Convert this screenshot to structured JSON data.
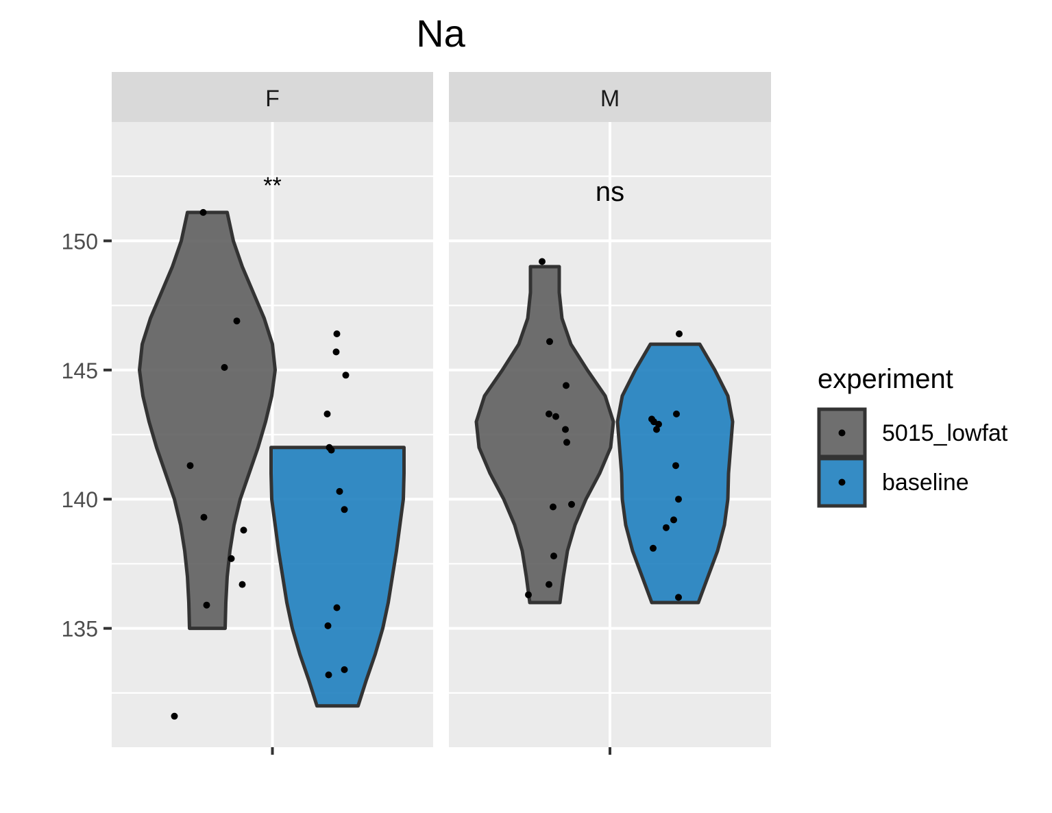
{
  "chart_data": {
    "type": "violin",
    "title": "Na",
    "xlabel": "",
    "ylabel": "",
    "ylim": [
      130.4,
      154.6
    ],
    "yticks": [
      135,
      140,
      145,
      150
    ],
    "grid": true,
    "legend": {
      "title": "experiment",
      "placement": "right",
      "entries": [
        {
          "name": "5015_lowfat",
          "color": "#5f5f5f"
        },
        {
          "name": "baseline",
          "color": "#1f7fbf"
        }
      ]
    },
    "colors": {
      "panel_bg": "#ebebeb",
      "strip_bg": "#d9d9d9",
      "grid": "#ffffff",
      "outline": "#333333",
      "point": "#000000",
      "lowfat_fill": "#5f5f5f",
      "baseline_fill": "#1f7fbf"
    },
    "facets": [
      {
        "label": "F",
        "significance": "**",
        "groups": [
          {
            "name": "5015_lowfat",
            "violin_range": [
              135,
              151.1
            ],
            "points": [
              [
                -0.06,
                151.1
              ],
              [
                0.43,
                146.9
              ],
              [
                0.25,
                145.1
              ],
              [
                -0.25,
                141.3
              ],
              [
                -0.05,
                139.3
              ],
              [
                -0.01,
                135.9
              ],
              [
                0.35,
                137.7
              ],
              [
                0.53,
                138.8
              ],
              [
                0.51,
                136.7
              ],
              [
                -0.48,
                131.6
              ]
            ],
            "density": [
              [
                135,
                0.26
              ],
              [
                136,
                0.27
              ],
              [
                137,
                0.29
              ],
              [
                138,
                0.33
              ],
              [
                139,
                0.39
              ],
              [
                140,
                0.48
              ],
              [
                141,
                0.61
              ],
              [
                142,
                0.74
              ],
              [
                143,
                0.85
              ],
              [
                144,
                0.94
              ],
              [
                145,
                0.99
              ],
              [
                146,
                0.95
              ],
              [
                147,
                0.83
              ],
              [
                148,
                0.67
              ],
              [
                149,
                0.51
              ],
              [
                150,
                0.38
              ],
              [
                151.1,
                0.29
              ]
            ]
          },
          {
            "name": "baseline",
            "violin_range": [
              132,
              142
            ],
            "points": [
              [
                -0.15,
                143.3
              ],
              [
                -0.12,
                142.0
              ],
              [
                -0.09,
                141.9
              ],
              [
                -0.14,
                135.1
              ],
              [
                -0.13,
                133.2
              ],
              [
                -0.01,
                146.4
              ],
              [
                -0.02,
                145.7
              ],
              [
                0.03,
                140.3
              ],
              [
                0.1,
                139.6
              ],
              [
                0.12,
                144.8
              ],
              [
                -0.01,
                135.8
              ],
              [
                0.1,
                133.4
              ]
            ],
            "density": [
              [
                132,
                0.3
              ],
              [
                133,
                0.42
              ],
              [
                134,
                0.55
              ],
              [
                135,
                0.66
              ],
              [
                136,
                0.74
              ],
              [
                137,
                0.8
              ],
              [
                138,
                0.86
              ],
              [
                139,
                0.91
              ],
              [
                140,
                0.96
              ],
              [
                141,
                0.97
              ],
              [
                142,
                0.97
              ]
            ]
          }
        ]
      },
      {
        "label": "M",
        "significance": "ns",
        "groups": [
          {
            "name": "5015_lowfat",
            "violin_range": [
              136,
              149
            ],
            "points": [
              [
                -0.04,
                149.2
              ],
              [
                0.07,
                146.1
              ],
              [
                0.31,
                144.4
              ],
              [
                0.06,
                143.3
              ],
              [
                0.16,
                143.2
              ],
              [
                0.3,
                142.7
              ],
              [
                0.32,
                142.2
              ],
              [
                0.12,
                139.7
              ],
              [
                0.13,
                137.8
              ],
              [
                0.06,
                136.7
              ],
              [
                -0.24,
                136.3
              ],
              [
                0.39,
                139.8
              ]
            ],
            "density": [
              [
                136,
                0.22
              ],
              [
                137,
                0.27
              ],
              [
                138,
                0.33
              ],
              [
                139,
                0.44
              ],
              [
                140,
                0.6
              ],
              [
                141,
                0.8
              ],
              [
                142,
                0.96
              ],
              [
                143,
                1.0
              ],
              [
                144,
                0.88
              ],
              [
                145,
                0.62
              ],
              [
                146,
                0.38
              ],
              [
                147,
                0.25
              ],
              [
                148,
                0.21
              ],
              [
                149,
                0.21
              ]
            ]
          },
          {
            "name": "baseline",
            "violin_range": [
              136,
              146
            ],
            "points": [
              [
                -0.34,
                143.1
              ],
              [
                -0.31,
                143.0
              ],
              [
                -0.24,
                142.9
              ],
              [
                -0.27,
                142.7
              ],
              [
                -0.32,
                138.1
              ],
              [
                -0.13,
                138.9
              ],
              [
                0.02,
                143.3
              ],
              [
                0.01,
                141.3
              ],
              [
                -0.02,
                139.2
              ],
              [
                0.05,
                140.0
              ],
              [
                0.05,
                136.2
              ],
              [
                0.06,
                146.4
              ]
            ],
            "density": [
              [
                136,
                0.34
              ],
              [
                137,
                0.48
              ],
              [
                138,
                0.62
              ],
              [
                139,
                0.72
              ],
              [
                140,
                0.77
              ],
              [
                141,
                0.78
              ],
              [
                142,
                0.81
              ],
              [
                143,
                0.84
              ],
              [
                144,
                0.77
              ],
              [
                145,
                0.58
              ],
              [
                146,
                0.36
              ]
            ]
          }
        ]
      }
    ]
  }
}
